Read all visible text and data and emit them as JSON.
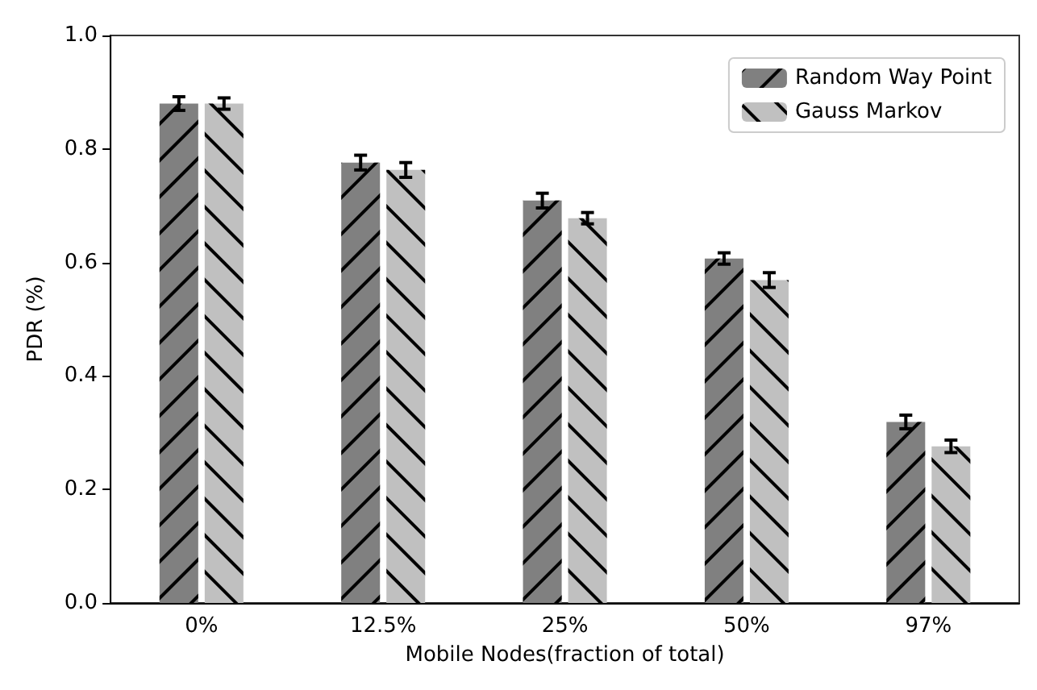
{
  "chart_data": {
    "type": "bar",
    "xlabel": "Mobile Nodes(fraction of total)",
    "ylabel": "PDR (%)",
    "categories": [
      "0%",
      "12.5%",
      "25%",
      "50%",
      "97%"
    ],
    "series": [
      {
        "name": "Random Way Point",
        "color": "#808080",
        "values": [
          0.88,
          0.776,
          0.709,
          0.607,
          0.319
        ],
        "errors": [
          0.012,
          0.013,
          0.013,
          0.01,
          0.012
        ]
      },
      {
        "name": "Gauss Markov",
        "color": "#c0c0c0",
        "values": [
          0.88,
          0.763,
          0.678,
          0.569,
          0.276
        ],
        "errors": [
          0.01,
          0.013,
          0.01,
          0.013,
          0.011
        ]
      }
    ],
    "ylim": [
      0,
      1
    ],
    "yticks": [
      {
        "value": 0,
        "label": "0.0"
      },
      {
        "value": 0.2,
        "label": "0.2"
      },
      {
        "value": 0.4,
        "label": "0.4"
      },
      {
        "value": 0.6,
        "label": "0.6"
      },
      {
        "value": 0.8,
        "label": "0.8"
      },
      {
        "value": 1,
        "label": "1.0"
      }
    ],
    "legend": "top right",
    "grid": false
  }
}
